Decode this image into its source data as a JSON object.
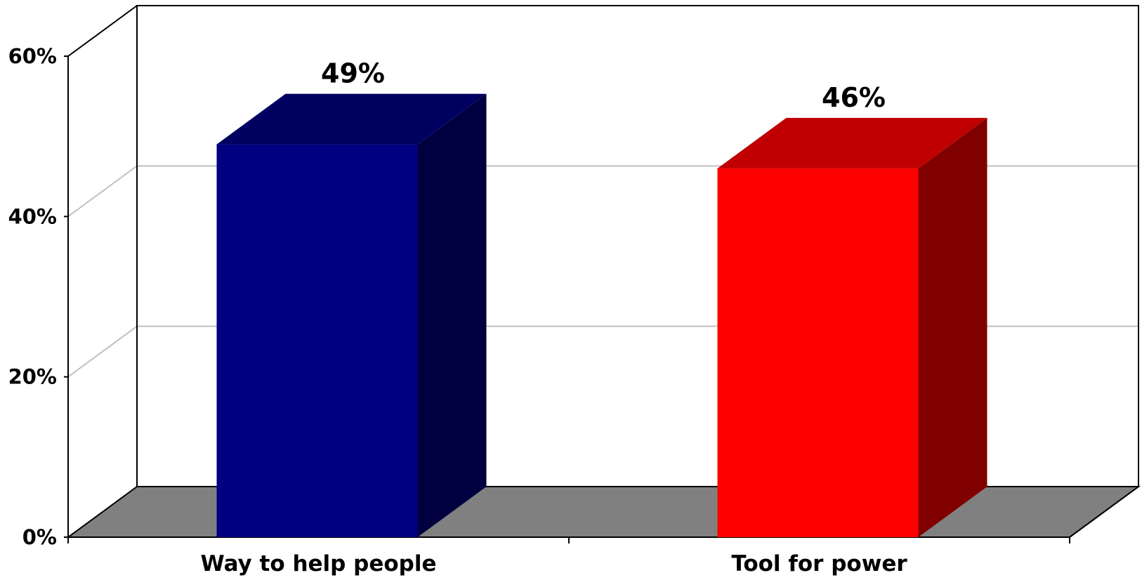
{
  "chart_data": {
    "type": "bar",
    "categories": [
      "Way to help people",
      "Tool for power"
    ],
    "series": [
      {
        "values": [
          49,
          46
        ]
      }
    ],
    "data_labels": [
      "49%",
      "46%"
    ],
    "ylim": [
      0,
      60
    ],
    "y_ticks": [
      0,
      20,
      40,
      60
    ],
    "y_tick_labels": [
      "0%",
      "20%",
      "40%",
      "60%"
    ],
    "grid": true,
    "three_d": true,
    "colors": {
      "bars": [
        {
          "front": "#000080",
          "side": "#000040",
          "top": "#000060"
        },
        {
          "front": "#FF0000",
          "side": "#800000",
          "top": "#C00000"
        }
      ],
      "floor": "#808080",
      "gridline": "#C0C0C0",
      "axis": "#000000"
    }
  }
}
